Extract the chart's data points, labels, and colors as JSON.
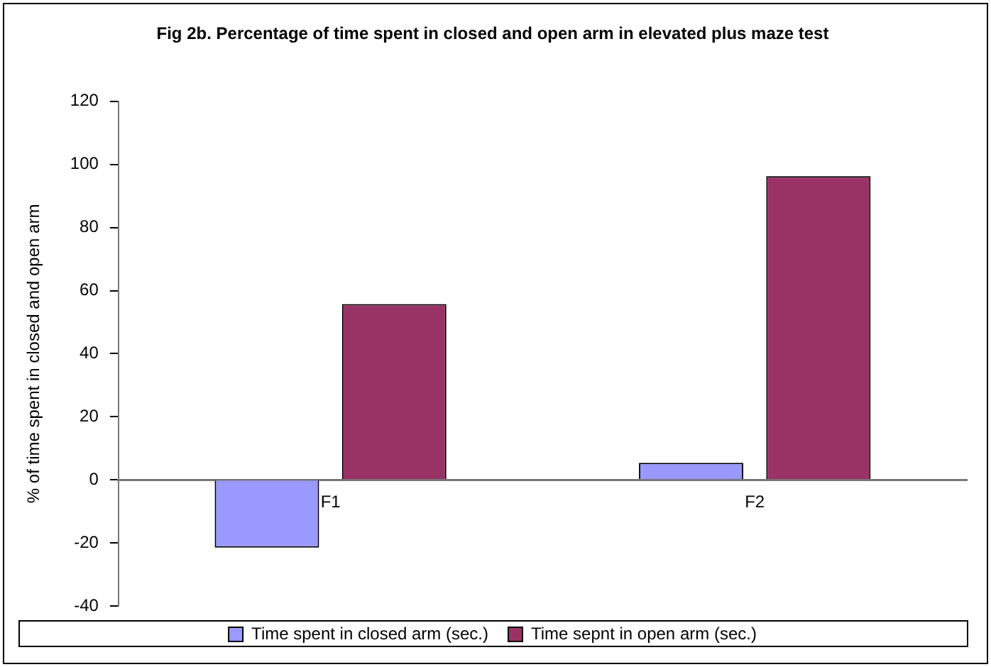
{
  "chart_data": {
    "type": "bar",
    "title": "Fig 2b. Percentage of time spent in closed and open arm in elevated plus maze test",
    "ylabel": "% of time spent in closed and open arm",
    "categories": [
      "F1",
      "F2"
    ],
    "series": [
      {
        "name": "Time spent in closed arm (sec.)",
        "color": "#9999ff",
        "values": [
          -21.5,
          5.4
        ]
      },
      {
        "name": "Time sepnt in open arm (sec.)",
        "color": "#993366",
        "values": [
          55.7,
          96.3
        ]
      }
    ],
    "ylim": [
      -40,
      120
    ],
    "yticks": [
      -40,
      -20,
      0,
      20,
      40,
      60,
      80,
      100,
      120
    ],
    "grid": false,
    "legend": "bottom"
  }
}
